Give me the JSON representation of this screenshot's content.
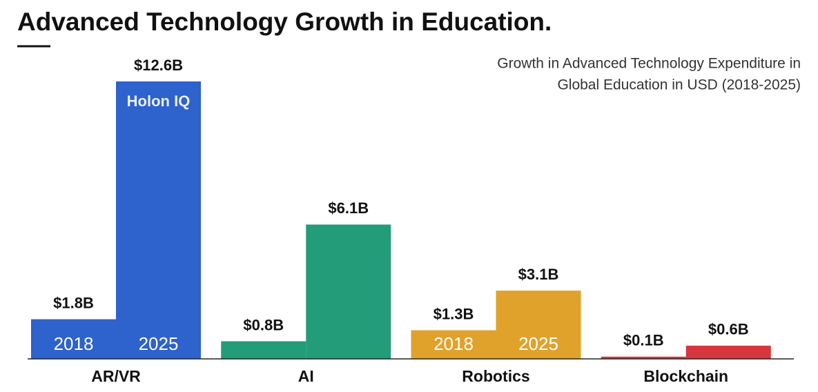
{
  "chart_data": {
    "type": "bar",
    "title": "Advanced Technology Growth in Education.",
    "subtitle": [
      "Growth in Advanced Technology Expenditure in",
      "Global Education in USD (2018-2025)"
    ],
    "watermark": "Holon IQ",
    "categories": [
      "AR/VR",
      "AI",
      "Robotics",
      "Blockchain"
    ],
    "colors": [
      "#2e62cc",
      "#229c79",
      "#e0a22b",
      "#d8363f"
    ],
    "inner_labels": [
      true,
      false,
      true,
      false
    ],
    "series": [
      {
        "name": "2018",
        "values": [
          1.8,
          0.8,
          1.3,
          0.1
        ],
        "value_labels": [
          "$1.8B",
          "$0.8B",
          "$1.3B",
          "$0.1B"
        ]
      },
      {
        "name": "2025",
        "values": [
          12.6,
          6.1,
          3.1,
          0.6
        ],
        "value_labels": [
          "$12.6B",
          "$6.1B",
          "$3.1B",
          "$0.6B"
        ]
      }
    ]
  }
}
